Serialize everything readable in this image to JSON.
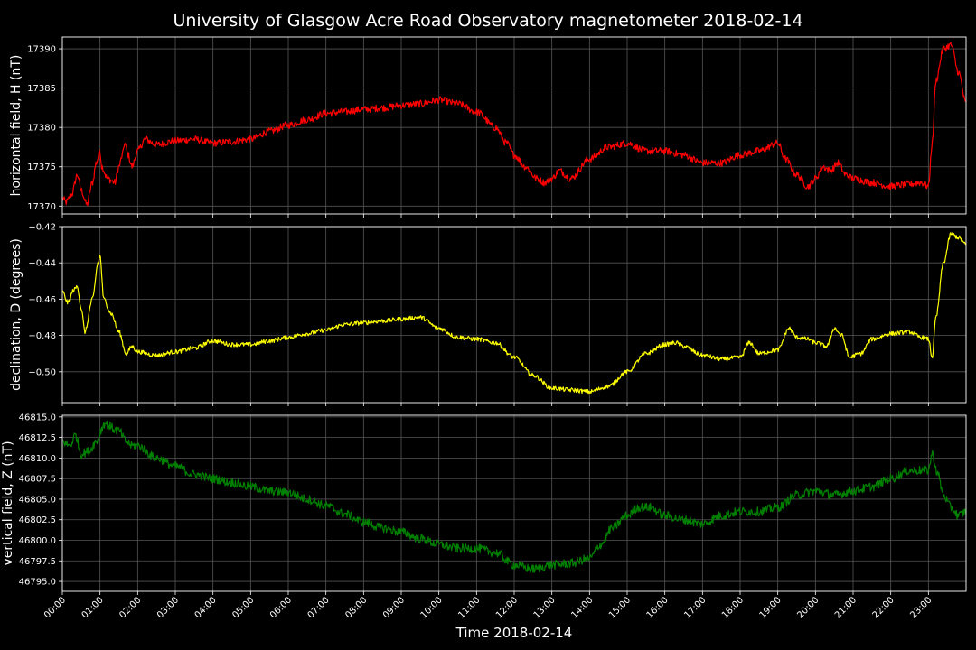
{
  "title": "University of Glasgow Acre Road Observatory magnetometer 2018-02-14",
  "xlabel": "Time 2018-02-14",
  "chart_data": [
    {
      "type": "line",
      "name": "H",
      "ylabel": "horizontal field, H (nT)",
      "color": "#ff0000",
      "noise": 0.45,
      "xlim": [
        0,
        24
      ],
      "ylim": [
        17369,
        17391.5
      ],
      "yticks": [
        17370,
        17375,
        17380,
        17385,
        17390
      ],
      "ytick_labels": [
        "17370",
        "17375",
        "17380",
        "17385",
        "17390"
      ],
      "x": [
        0,
        0.1,
        0.25,
        0.4,
        0.5,
        0.65,
        0.8,
        0.9,
        1.0,
        1.05,
        1.2,
        1.4,
        1.5,
        1.6,
        1.65,
        1.75,
        1.85,
        2.0,
        2.2,
        2.5,
        3.0,
        3.5,
        4.0,
        4.5,
        5.0,
        5.5,
        6.0,
        6.5,
        7.0,
        7.5,
        8.0,
        8.5,
        9.0,
        9.5,
        10.0,
        10.5,
        11.0,
        11.5,
        11.8,
        12.0,
        12.3,
        12.6,
        12.8,
        13.0,
        13.2,
        13.5,
        14.0,
        14.5,
        15.0,
        15.5,
        16.0,
        16.5,
        17.0,
        17.5,
        18.0,
        18.5,
        19.0,
        19.2,
        19.5,
        19.8,
        20.0,
        20.2,
        20.4,
        20.6,
        20.8,
        21.0,
        21.5,
        22.0,
        22.5,
        22.8,
        23.0,
        23.1,
        23.2,
        23.4,
        23.6,
        23.8,
        24.0
      ],
      "y": [
        17371,
        17370.5,
        17371.5,
        17374,
        17372,
        17370.2,
        17373,
        17375.5,
        17377,
        17375,
        17373.5,
        17373,
        17375,
        17376.5,
        17378,
        17376.5,
        17375,
        17377,
        17378.5,
        17377.8,
        17378.3,
        17378.5,
        17378,
        17378.2,
        17378.5,
        17379.5,
        17380.3,
        17381,
        17381.8,
        17382,
        17382.3,
        17382.5,
        17382.8,
        17383,
        17383.5,
        17383,
        17382,
        17380,
        17378,
        17376.5,
        17375,
        17373.5,
        17373,
        17373.5,
        17374.5,
        17373.5,
        17376,
        17377.5,
        17378,
        17377,
        17377,
        17376.5,
        17375.5,
        17375.5,
        17376.5,
        17377,
        17378,
        17376,
        17374,
        17372.5,
        17373.5,
        17375,
        17374.5,
        17375.5,
        17374,
        17373.5,
        17373,
        17372.5,
        17372.8,
        17373,
        17372.5,
        17378,
        17386,
        17390,
        17390.5,
        17387,
        17383
      ]
    },
    {
      "type": "line",
      "name": "D",
      "ylabel": "declination, D (degrees)",
      "color": "#ffff00",
      "noise": 0.0012,
      "xlim": [
        0,
        24
      ],
      "ylim": [
        -0.517,
        -0.42
      ],
      "yticks": [
        -0.5,
        -0.48,
        -0.46,
        -0.44,
        -0.42
      ],
      "ytick_labels": [
        "−0.50",
        "−0.48",
        "−0.46",
        "−0.44",
        "−0.42"
      ],
      "x": [
        0,
        0.15,
        0.3,
        0.4,
        0.5,
        0.6,
        0.8,
        0.95,
        1.0,
        1.1,
        1.3,
        1.5,
        1.7,
        1.85,
        2.0,
        2.5,
        3.0,
        3.5,
        4.0,
        4.5,
        5.0,
        5.5,
        6.0,
        6.5,
        7.0,
        7.5,
        8.0,
        8.5,
        9.0,
        9.5,
        10.0,
        10.5,
        11.0,
        11.5,
        12.0,
        12.5,
        13.0,
        13.5,
        14.0,
        14.5,
        15.0,
        15.5,
        16.0,
        16.3,
        16.5,
        17.0,
        17.5,
        18.0,
        18.25,
        18.5,
        19.0,
        19.3,
        19.5,
        19.8,
        20.0,
        20.3,
        20.5,
        20.7,
        20.9,
        21.2,
        21.5,
        22.0,
        22.5,
        22.8,
        23.0,
        23.1,
        23.2,
        23.4,
        23.6,
        23.8,
        24.0
      ],
      "y": [
        -0.456,
        -0.462,
        -0.455,
        -0.453,
        -0.465,
        -0.478,
        -0.46,
        -0.44,
        -0.436,
        -0.46,
        -0.468,
        -0.478,
        -0.49,
        -0.486,
        -0.489,
        -0.491,
        -0.489,
        -0.487,
        -0.483,
        -0.485,
        -0.485,
        -0.483,
        -0.481,
        -0.479,
        -0.477,
        -0.474,
        -0.473,
        -0.472,
        -0.471,
        -0.47,
        -0.476,
        -0.481,
        -0.482,
        -0.484,
        -0.492,
        -0.502,
        -0.509,
        -0.51,
        -0.511,
        -0.508,
        -0.5,
        -0.49,
        -0.485,
        -0.484,
        -0.486,
        -0.491,
        -0.493,
        -0.492,
        -0.484,
        -0.49,
        -0.488,
        -0.476,
        -0.481,
        -0.482,
        -0.484,
        -0.486,
        -0.476,
        -0.48,
        -0.492,
        -0.49,
        -0.482,
        -0.479,
        -0.478,
        -0.481,
        -0.482,
        -0.492,
        -0.47,
        -0.44,
        -0.424,
        -0.426,
        -0.43
      ]
    },
    {
      "type": "line",
      "name": "Z",
      "ylabel": "vertical field, Z (nT)",
      "color": "#008000",
      "noise": 0.55,
      "xlim": [
        0,
        24
      ],
      "ylim": [
        46793.8,
        46815.2
      ],
      "yticks": [
        46795,
        46797.5,
        46800,
        46802.5,
        46805,
        46807.5,
        46810,
        46812.5,
        46815
      ],
      "ytick_labels": [
        "46795.0",
        "46797.5",
        "46800.0",
        "46802.5",
        "46805.0",
        "46807.5",
        "46810.0",
        "46812.5",
        "46815.0"
      ],
      "x": [
        0,
        0.2,
        0.35,
        0.5,
        0.7,
        0.9,
        1.05,
        1.1,
        1.5,
        1.7,
        1.85,
        2.0,
        2.5,
        3.0,
        3.5,
        4.0,
        4.5,
        5.0,
        5.5,
        6.0,
        6.5,
        7.0,
        7.5,
        8.0,
        8.5,
        9.0,
        9.5,
        10.0,
        10.5,
        11.0,
        11.5,
        12.0,
        12.5,
        13.0,
        13.5,
        14.0,
        14.3,
        14.6,
        15.0,
        15.3,
        15.6,
        16.0,
        16.5,
        17.0,
        17.5,
        18.0,
        18.5,
        19.0,
        19.5,
        20.0,
        20.5,
        21.0,
        21.5,
        22.0,
        22.5,
        23.0,
        23.1,
        23.25,
        23.4,
        23.6,
        23.8,
        24.0
      ],
      "y": [
        46812,
        46811.5,
        46812.8,
        46810.5,
        46810.8,
        46812,
        46813.5,
        46814.2,
        46813.3,
        46812,
        46811.5,
        46811.5,
        46810,
        46809,
        46808,
        46807.5,
        46807,
        46806.5,
        46806,
        46805.8,
        46805,
        46804.2,
        46803.2,
        46802.2,
        46801.5,
        46801,
        46800.2,
        46799.5,
        46799,
        46799,
        46798.5,
        46797,
        46796.5,
        46797,
        46797.2,
        46797.8,
        46799.5,
        46801.5,
        46803,
        46804,
        46804,
        46803,
        46802.5,
        46802,
        46803,
        46803.5,
        46803.5,
        46804,
        46805.5,
        46806,
        46805.5,
        46806,
        46806.5,
        46807.5,
        46808.5,
        46808.5,
        46810.5,
        46808,
        46805.5,
        46804,
        46803,
        46803.5
      ]
    }
  ],
  "xtick_labels": [
    "00:00",
    "01:00",
    "02:00",
    "03:00",
    "04:00",
    "05:00",
    "06:00",
    "07:00",
    "08:00",
    "09:00",
    "10:00",
    "11:00",
    "12:00",
    "13:00",
    "14:00",
    "15:00",
    "16:00",
    "17:00",
    "18:00",
    "19:00",
    "20:00",
    "21:00",
    "22:00",
    "23:00"
  ],
  "grid": true
}
